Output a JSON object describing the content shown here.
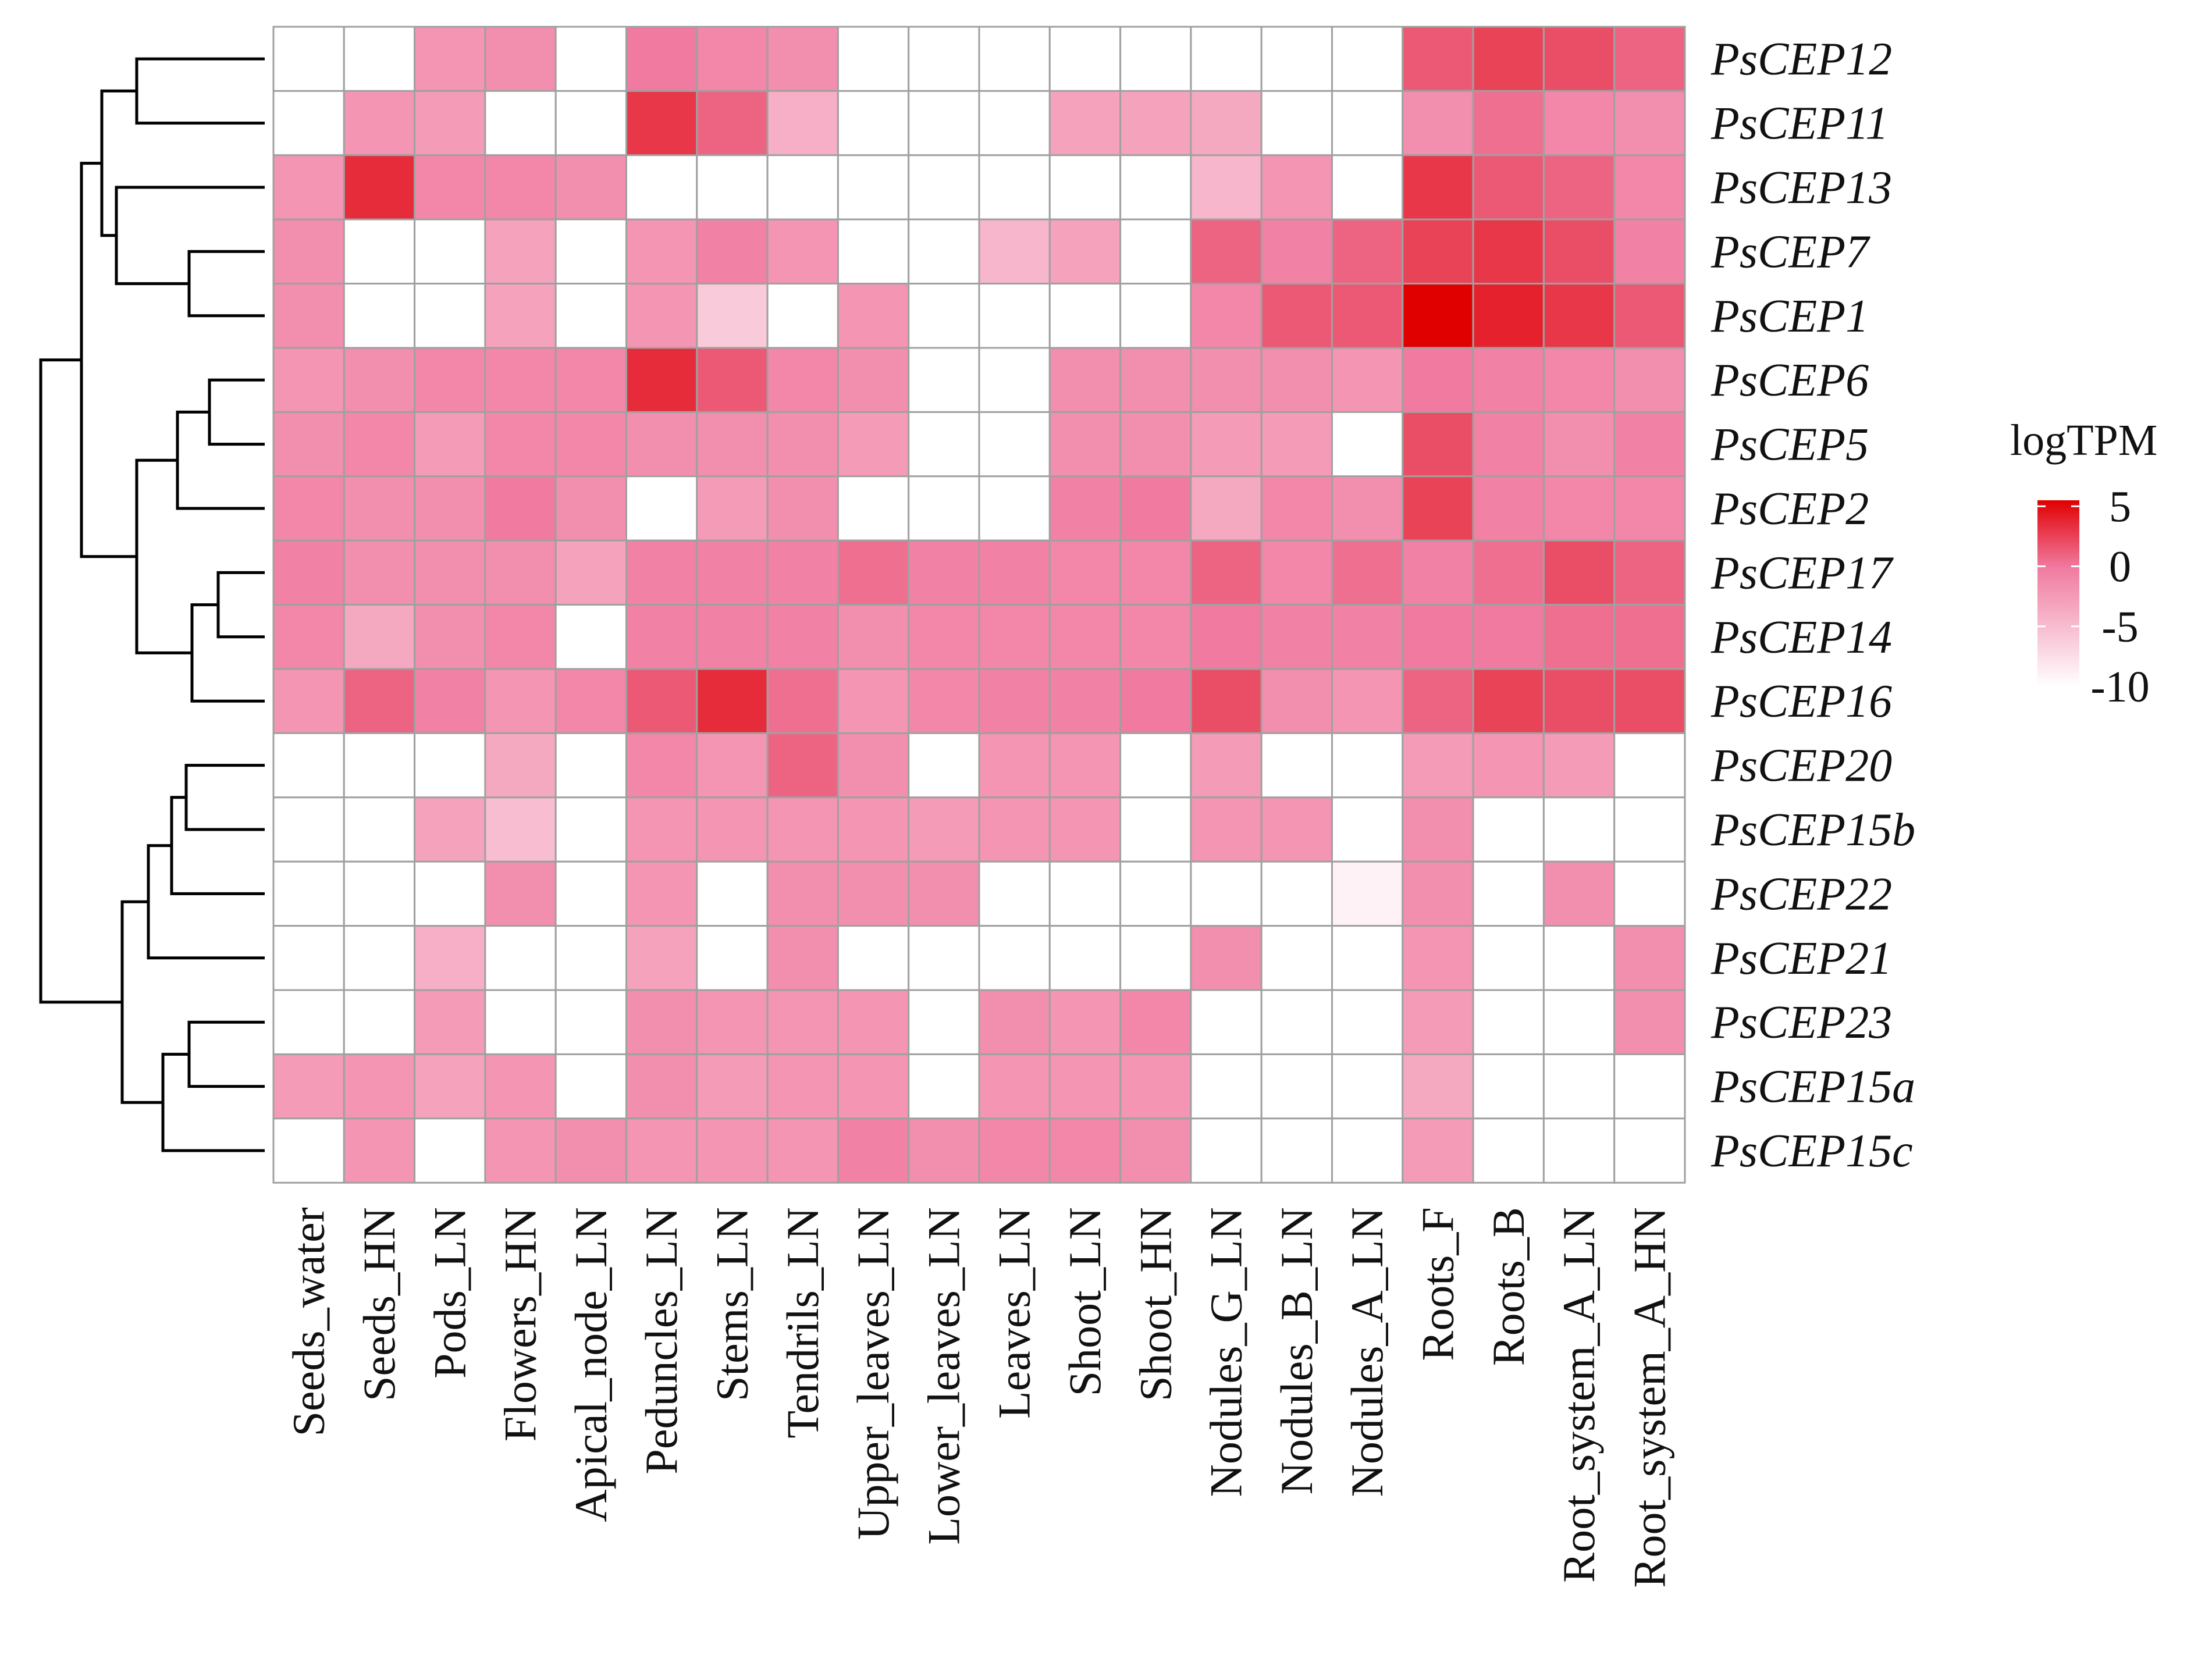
{
  "chart_data": {
    "type": "heatmap",
    "rows": [
      "PsCEP12",
      "PsCEP11",
      "PsCEP13",
      "PsCEP7",
      "PsCEP1",
      "PsCEP6",
      "PsCEP5",
      "PsCEP2",
      "PsCEP17",
      "PsCEP14",
      "PsCEP16",
      "PsCEP20",
      "PsCEP15b",
      "PsCEP22",
      "PsCEP21",
      "PsCEP23",
      "PsCEP15a",
      "PsCEP15c"
    ],
    "columns": [
      "Seeds_water",
      "Seeds_HN",
      "Pods_LN",
      "Flowers_HN",
      "Apical_node_LN",
      "Peduncles_LN",
      "Stems_LN",
      "Tendrils_LN",
      "Upper_leaves_LN",
      "Lower_leaves_LN",
      "Leaves_LN",
      "Shoot_LN",
      "Shoot_HN",
      "Nodules_G_LN",
      "Nodules_B_LN",
      "Nodules_A_LN",
      "Roots_F",
      "Roots_B",
      "Root_system_A_LN",
      "Root_system_A_HN"
    ],
    "values": [
      [
        null,
        null,
        -2,
        -1.5,
        null,
        0,
        -1,
        -1.5,
        null,
        null,
        null,
        null,
        null,
        null,
        null,
        null,
        1.5,
        2.5,
        2,
        1
      ],
      [
        null,
        -2,
        -2.5,
        null,
        null,
        3,
        1,
        -4,
        null,
        null,
        null,
        -3,
        -3,
        -3.5,
        null,
        null,
        -1.5,
        0.5,
        -1,
        -1.5
      ],
      [
        -2,
        3.5,
        -1,
        -1,
        -1.5,
        null,
        null,
        null,
        null,
        null,
        null,
        null,
        null,
        -4.5,
        -2,
        null,
        3,
        1.5,
        1,
        -1
      ],
      [
        -1.5,
        null,
        null,
        -3,
        null,
        -2,
        -0.5,
        -2,
        null,
        null,
        -4.5,
        -3,
        null,
        1,
        -0.5,
        1,
        2.5,
        3,
        2,
        -0.5
      ],
      [
        -1.5,
        null,
        null,
        -3,
        null,
        -2,
        -6,
        null,
        -2,
        null,
        null,
        null,
        null,
        -1,
        1.5,
        1.5,
        5.5,
        4,
        3,
        1.5
      ],
      [
        -2,
        -1.5,
        -1,
        -1,
        -1,
        3.5,
        1.5,
        -1,
        -1.5,
        null,
        null,
        -1.5,
        -1.5,
        -1.5,
        -1.5,
        -2,
        0,
        -0.5,
        -1,
        -1.5
      ],
      [
        -1.5,
        -1,
        -2.5,
        -1,
        -1,
        -1.5,
        -1.5,
        -1.5,
        -2.5,
        null,
        null,
        -1.5,
        -1.5,
        -2.5,
        -2.5,
        null,
        2,
        -0.5,
        -1.5,
        -0.5
      ],
      [
        -1,
        -1.5,
        -1.5,
        0,
        -1.5,
        null,
        -2.5,
        -1.5,
        null,
        null,
        null,
        -0.5,
        0,
        -3.5,
        -1,
        -1.5,
        2.5,
        -0.5,
        -1,
        -1
      ],
      [
        -0.5,
        -1.5,
        -1.5,
        -1.5,
        -3,
        -0.5,
        -0.5,
        -0.5,
        0.5,
        -0.5,
        -0.5,
        -1,
        -1,
        1,
        -1,
        0.5,
        -0.5,
        0.5,
        2,
        1
      ],
      [
        -1,
        -3.5,
        -1.5,
        -1,
        null,
        -0.5,
        -0.5,
        -0.5,
        -1.5,
        -1,
        -1,
        -1,
        -1,
        0,
        -0.5,
        -0.5,
        0,
        0,
        0.5,
        0.5
      ],
      [
        -2,
        1,
        -0.5,
        -2,
        -1,
        1.5,
        3.5,
        0.5,
        -2,
        -1,
        -0.5,
        -0.5,
        0,
        2,
        -1.5,
        -2,
        1,
        2.5,
        2,
        2
      ],
      [
        null,
        null,
        null,
        -3.5,
        null,
        -1,
        -2,
        1,
        -1.5,
        null,
        -2,
        -2,
        null,
        -2.5,
        null,
        null,
        -2.5,
        -2,
        -2.5,
        null
      ],
      [
        null,
        null,
        -3,
        -5,
        null,
        -2,
        -2,
        -2,
        -2,
        -2.5,
        -2,
        -2,
        null,
        -2,
        -2,
        null,
        -1.5,
        null,
        null,
        null
      ],
      [
        null,
        null,
        null,
        -1.5,
        null,
        -2,
        null,
        -1.5,
        -1.5,
        -1.5,
        null,
        null,
        null,
        null,
        null,
        -9,
        -1.5,
        null,
        -1.5,
        null
      ],
      [
        null,
        null,
        -4,
        null,
        null,
        -3,
        null,
        -1.5,
        null,
        null,
        null,
        null,
        null,
        -1.5,
        null,
        null,
        -2,
        null,
        null,
        -1.5
      ],
      [
        null,
        null,
        -2.5,
        null,
        null,
        -1.5,
        -2,
        -2,
        -2,
        null,
        -1.5,
        -2,
        -1,
        null,
        null,
        null,
        -2.5,
        null,
        null,
        -1.5
      ],
      [
        -2.5,
        -2,
        -3,
        -2,
        null,
        -1.5,
        -2.5,
        -2,
        -2,
        null,
        -2,
        -2,
        -2,
        null,
        null,
        null,
        -3.5,
        null,
        null,
        null
      ],
      [
        null,
        -2,
        null,
        -2,
        -1.5,
        -2,
        -2,
        -2,
        -0.5,
        -1.5,
        -1,
        -1,
        -1.5,
        null,
        null,
        null,
        -2.5,
        null,
        null,
        null
      ]
    ],
    "legend": {
      "title": "logTPM",
      "ticks": [
        "5",
        "0",
        "-5",
        "-10"
      ],
      "range": [
        -10,
        5.5
      ],
      "placement": "right"
    },
    "colors": {
      "high": "#e00000",
      "mid": "#f07aa0",
      "low": "#ffffff",
      "missing": "#ffffff",
      "grid": "#a0a0a0"
    },
    "dendrogram": "rows"
  }
}
